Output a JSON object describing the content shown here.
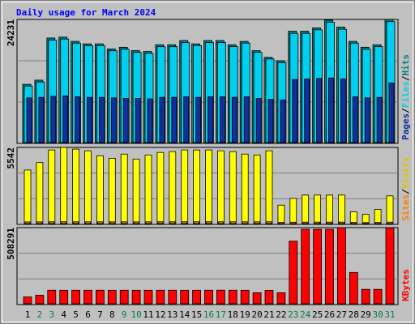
{
  "legend_separator": "/",
  "chart_data": [
    {
      "type": "bar",
      "title": "Daily usage for March 2024",
      "ylim": [
        0,
        24231
      ],
      "yticks": [
        24231
      ],
      "series": [
        {
          "name": "Hits",
          "color": "#008080",
          "values": [
            11540,
            12360,
            20600,
            20770,
            19940,
            19450,
            19450,
            18460,
            18790,
            18130,
            17960,
            19280,
            19280,
            20110,
            19450,
            20110,
            20110,
            19280,
            19940,
            18130,
            16810,
            16150,
            21920,
            21920,
            22580,
            24100,
            22740,
            19940,
            18790,
            19280,
            24231
          ]
        },
        {
          "name": "Files",
          "color": "#00d0f0",
          "values": [
            11200,
            12000,
            20200,
            20400,
            19600,
            19100,
            19100,
            18100,
            18400,
            17800,
            17600,
            18900,
            18900,
            19700,
            19100,
            19700,
            19700,
            18900,
            19600,
            17800,
            16500,
            15800,
            21500,
            21500,
            22200,
            23700,
            22300,
            19600,
            18400,
            18900,
            23800
          ]
        },
        {
          "name": "Pages",
          "color": "#1030a0",
          "values": [
            8900,
            9000,
            9200,
            9300,
            9100,
            9000,
            9000,
            8900,
            8800,
            8800,
            8700,
            9000,
            9000,
            9100,
            9000,
            9100,
            9100,
            9000,
            9100,
            8800,
            8600,
            8500,
            12500,
            12600,
            12700,
            12800,
            12600,
            9100,
            8900,
            9000,
            11800
          ]
        }
      ]
    },
    {
      "type": "bar",
      "ylim": [
        0,
        5542
      ],
      "yticks": [
        5542
      ],
      "series": [
        {
          "name": "Visits",
          "color": "#ffff00",
          "values": [
            3915,
            4455,
            5360,
            5542,
            5420,
            5300,
            4940,
            4760,
            5060,
            4700,
            5000,
            5180,
            5240,
            5360,
            5360,
            5360,
            5300,
            5240,
            5060,
            5000,
            5300,
            1385,
            1870,
            2110,
            2110,
            2110,
            2110,
            905,
            720,
            1085,
            2050
          ]
        },
        {
          "name": "Sites",
          "color": "#ff8000",
          "values": [
            180,
            185,
            190,
            192,
            190,
            188,
            186,
            184,
            188,
            182,
            186,
            189,
            190,
            191,
            191,
            191,
            190,
            189,
            188,
            186,
            190,
            150,
            160,
            165,
            165,
            165,
            165,
            140,
            130,
            140,
            160
          ]
        }
      ]
    },
    {
      "type": "bar",
      "ylim": [
        0,
        508291
      ],
      "yticks": [
        508291
      ],
      "categories": [
        "1",
        "2",
        "3",
        "4",
        "5",
        "6",
        "7",
        "8",
        "9",
        "10",
        "11",
        "12",
        "13",
        "14",
        "15",
        "16",
        "17",
        "18",
        "19",
        "20",
        "21",
        "22",
        "23",
        "24",
        "25",
        "26",
        "27",
        "28",
        "29",
        "30",
        "31"
      ],
      "category_colors": [
        "#000000",
        "#008040",
        "#008040",
        "#000000",
        "#000000",
        "#000000",
        "#000000",
        "#000000",
        "#008040",
        "#008040",
        "#000000",
        "#000000",
        "#000000",
        "#000000",
        "#000000",
        "#008040",
        "#008040",
        "#000000",
        "#000000",
        "#000000",
        "#000000",
        "#000000",
        "#008040",
        "#008040",
        "#000000",
        "#000000",
        "#000000",
        "#000000",
        "#000000",
        "#008040",
        "#008040"
      ],
      "series": [
        {
          "name": "KBytes",
          "color": "#ff0000",
          "values": [
            50270,
            61440,
            94960,
            94500,
            94800,
            94700,
            94900,
            94600,
            94800,
            94500,
            94700,
            94800,
            94900,
            94600,
            94700,
            95000,
            95000,
            94800,
            94700,
            78200,
            94000,
            78200,
            419000,
            497200,
            497200,
            497200,
            508291,
            212270,
            100550,
            100550,
            508000
          ]
        }
      ]
    }
  ]
}
